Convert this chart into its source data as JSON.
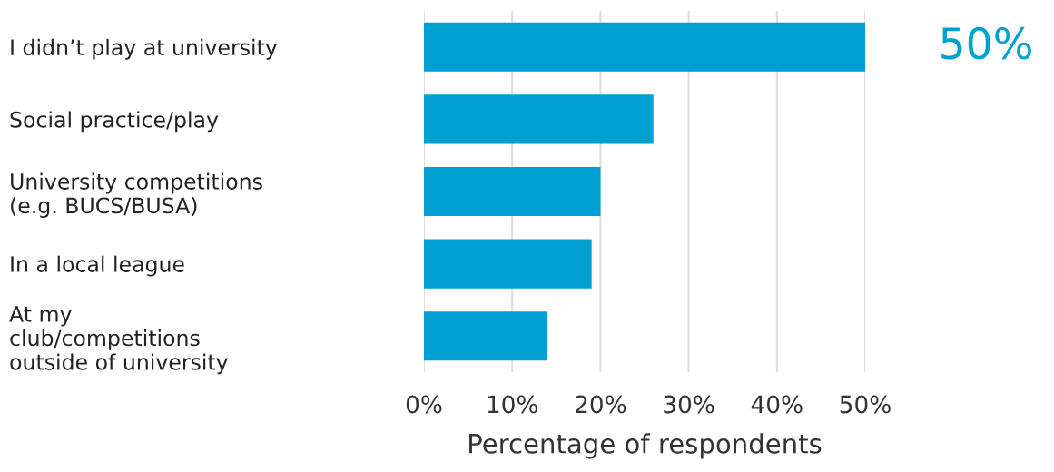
{
  "chart_data": {
    "type": "bar",
    "orientation": "horizontal",
    "categories": [
      "I didn’t play at university",
      "Social practice/play",
      "University competitions\n(e.g. BUCS/BUSA)",
      "In a local league",
      "At my\nclub/competitions\noutside of university"
    ],
    "values": [
      50,
      26,
      20,
      19,
      14
    ],
    "color": "#00a0d2",
    "xlabel": "Percentage of respondents",
    "xlim": [
      0,
      50
    ],
    "xticks": [
      {
        "value": 0,
        "label": "0%"
      },
      {
        "value": 10,
        "label": "10%"
      },
      {
        "value": 20,
        "label": "20%"
      },
      {
        "value": 30,
        "label": "30%"
      },
      {
        "value": 40,
        "label": "40%"
      },
      {
        "value": 50,
        "label": "50%"
      }
    ],
    "annotations": [
      {
        "text": "50%",
        "x": 50,
        "y": "I didn’t play at university"
      }
    ],
    "grid": "x",
    "legend": false
  }
}
